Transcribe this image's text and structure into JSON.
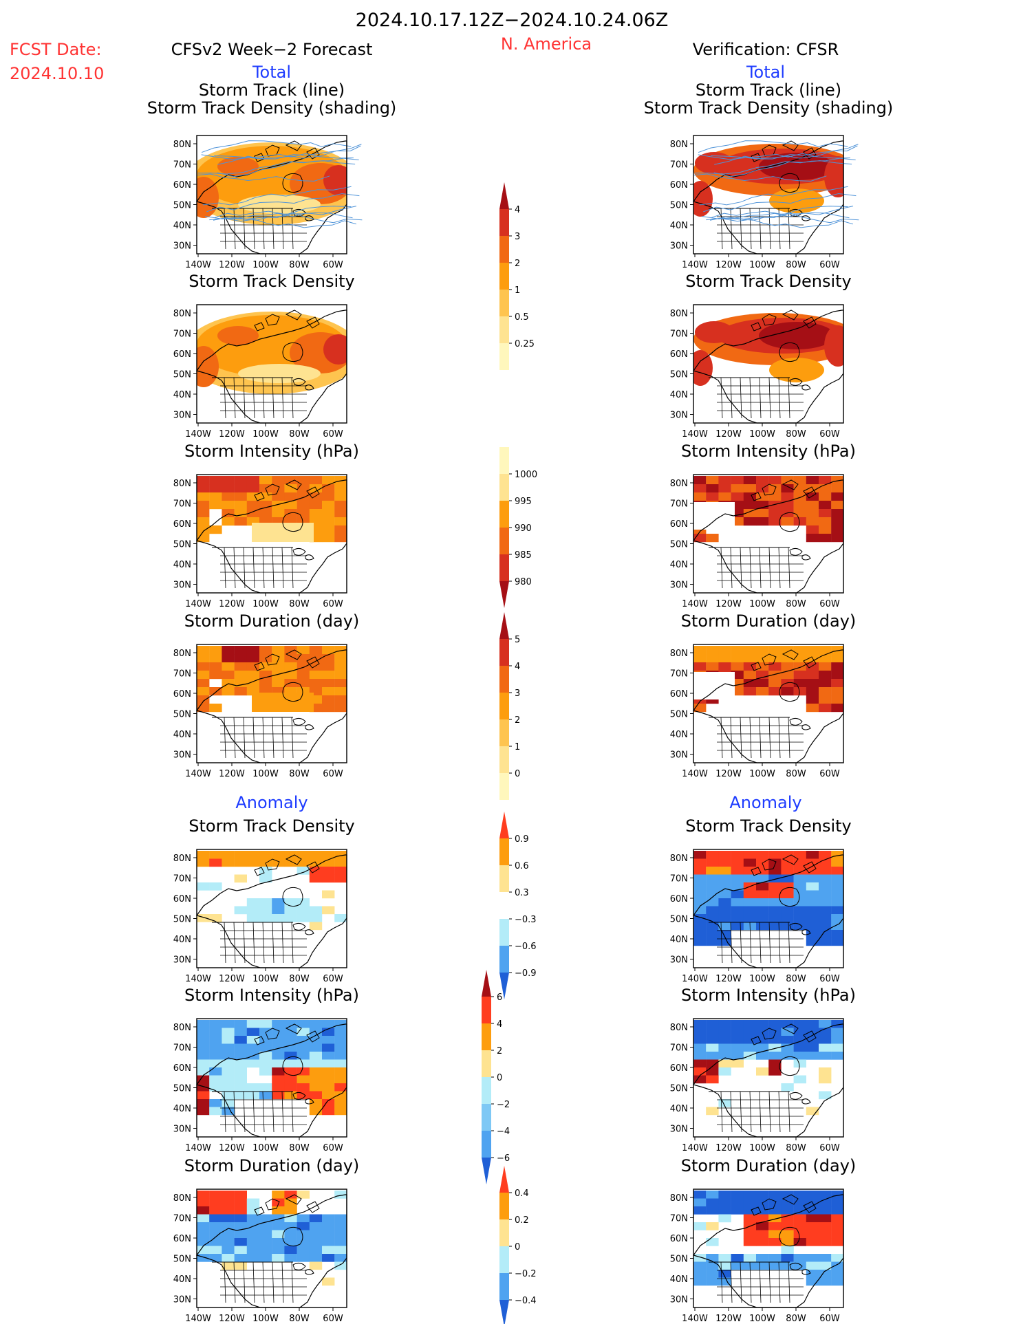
{
  "header": {
    "date_range": "2024.10.17.12Z−2024.10.24.06Z",
    "fcst_label": "FCST Date:",
    "fcst_date": "2024.10.10",
    "left_title": "CFSv2 Week−2 Forecast",
    "region": "N. America",
    "right_title": "Verification: CFSR",
    "total_left": "Total",
    "total_right": "Total",
    "anomaly_left": "Anomaly",
    "anomaly_right": "Anomaly"
  },
  "colors": {
    "header_black": "#000000",
    "fcst_red": "#ff3333",
    "section_blue": "#1e3cff",
    "map_outline": "#000000",
    "track_line": "#4f93d8"
  },
  "panel_titles": {
    "storm_track_line": "Storm Track (line)",
    "storm_track_density_shading": "Storm Track Density (shading)",
    "storm_track_density": "Storm Track Density",
    "storm_intensity": "Storm Intensity (hPa)",
    "storm_duration": "Storm Duration (day)"
  },
  "axes": {
    "lon_ticks": [
      "140W",
      "120W",
      "100W",
      "80W",
      "60W"
    ],
    "lat_ticks": [
      "80N",
      "70N",
      "60N",
      "50N",
      "40N",
      "30N"
    ]
  },
  "colorbars": [
    {
      "id": "density_total",
      "labels": [
        "4",
        "3",
        "2",
        "1",
        "0.5",
        "0.25"
      ],
      "colors": [
        "#a50f15",
        "#d7301f",
        "#f16913",
        "#fd9d0e",
        "#fec44f",
        "#fee391",
        "#fff7bc"
      ]
    },
    {
      "id": "intensity_total",
      "labels": [
        "1000",
        "995",
        "990",
        "985",
        "980"
      ],
      "colors": [
        "#fff7bc",
        "#fee391",
        "#fd9d0e",
        "#f16913",
        "#d7301f",
        "#a50f15"
      ]
    },
    {
      "id": "duration_total",
      "labels": [
        "5",
        "4",
        "3",
        "2",
        "1",
        "0"
      ],
      "colors": [
        "#a50f15",
        "#d7301f",
        "#f16913",
        "#fd9d0e",
        "#fec44f",
        "#fee391",
        "#fff7bc"
      ]
    },
    {
      "id": "density_anom",
      "labels": [
        "0.9",
        "0.6",
        "0.3",
        "−0.3",
        "−0.6",
        "−0.9"
      ],
      "colors": [
        "#ff3d1f",
        "#fd9d0e",
        "#fee391",
        "#ffffff",
        "#b3ecf8",
        "#4fa3f0",
        "#1f5fd6"
      ]
    },
    {
      "id": "intensity_anom",
      "labels": [
        "6",
        "4",
        "2",
        "0",
        "−2",
        "−4",
        "−6"
      ],
      "colors": [
        "#a50f15",
        "#ff3d1f",
        "#fd9d0e",
        "#fee391",
        "#b3ecf8",
        "#7ec8f5",
        "#4fa3f0",
        "#1f5fd6"
      ]
    },
    {
      "id": "duration_anom",
      "labels": [
        "0.4",
        "0.2",
        "0",
        "−0.2",
        "−0.4"
      ],
      "colors": [
        "#ff3d1f",
        "#fd9d0e",
        "#fee391",
        "#b3ecf8",
        "#4fa3f0",
        "#1f5fd6"
      ]
    }
  ]
}
